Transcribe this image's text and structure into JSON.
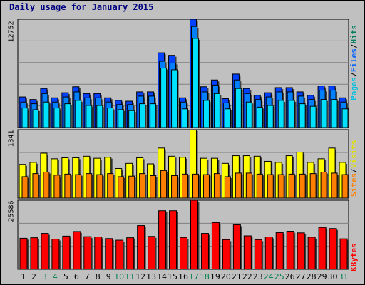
{
  "title": "Daily usage for January 2015",
  "panels": {
    "top": {
      "ymax_label": "12752",
      "legend": [
        "Pages",
        "/",
        "Files",
        "/",
        "Hits"
      ]
    },
    "middle": {
      "ymax_label": "1341",
      "legend": [
        "Sites",
        "/",
        "Visits"
      ]
    },
    "bottom": {
      "ymax_label": "25586",
      "legend": [
        "KBytes"
      ]
    }
  },
  "colors": {
    "background": "#c0c0c0",
    "plot_bg": "#c0c0c0",
    "hits": "#0040ff",
    "files": "#0080ff",
    "pages": "#00e0ff",
    "visits": "#ffff00",
    "sites": "#ff8000",
    "kbytes": "#ff0000",
    "weekday_label": "#000000",
    "weekend_label": "#00804b",
    "grid": "#808080"
  },
  "chart_data": {
    "type": "bar",
    "categories": [
      "1",
      "2",
      "3",
      "4",
      "5",
      "6",
      "7",
      "8",
      "9",
      "10",
      "11",
      "12",
      "13",
      "14",
      "15",
      "16",
      "17",
      "18",
      "19",
      "20",
      "21",
      "22",
      "23",
      "24",
      "25",
      "26",
      "27",
      "28",
      "29",
      "30",
      "31"
    ],
    "weekend_days": [
      3,
      4,
      10,
      11,
      17,
      18,
      24,
      25,
      31
    ],
    "panels": [
      {
        "ymax": 12752,
        "series": [
          {
            "name": "Hits",
            "values": [
              3600,
              3300,
              4600,
              3500,
              4100,
              4800,
              4000,
              4000,
              3500,
              3200,
              3100,
              4200,
              4200,
              8800,
              8500,
              3500,
              12752,
              4800,
              5600,
              3400,
              6300,
              4600,
              3800,
              4100,
              4700,
              4700,
              4200,
              3800,
              4900,
              4900,
              3500
            ]
          },
          {
            "name": "Files",
            "values": [
              3000,
              2800,
              4000,
              3000,
              3600,
              4200,
              3500,
              3500,
              3000,
              2700,
              2700,
              3700,
              3700,
              7800,
              7600,
              3000,
              11900,
              4200,
              5000,
              2900,
              5600,
              4000,
              3300,
              3600,
              4200,
              4200,
              3700,
              3300,
              4400,
              4400,
              3000
            ]
          },
          {
            "name": "Pages",
            "values": [
              2300,
              2100,
              3000,
              2300,
              2800,
              3200,
              2600,
              2600,
              2300,
              2100,
              2000,
              2800,
              2800,
              7000,
              6800,
              2200,
              10500,
              3200,
              4000,
              2200,
              4600,
              3000,
              2400,
              2600,
              3200,
              3200,
              2800,
              2500,
              3300,
              3300,
              2200
            ]
          }
        ]
      },
      {
        "ymax": 1341,
        "series": [
          {
            "name": "Visits",
            "values": [
              660,
              700,
              880,
              770,
              790,
              790,
              820,
              780,
              800,
              580,
              680,
              790,
              670,
              980,
              820,
              800,
              1341,
              780,
              780,
              680,
              830,
              830,
              820,
              720,
              700,
              830,
              900,
              700,
              770,
              980,
              700
            ]
          },
          {
            "name": "Sites",
            "values": [
              420,
              480,
              510,
              450,
              470,
              460,
              480,
              460,
              480,
              420,
              430,
              480,
              440,
              540,
              440,
              470,
              470,
              460,
              480,
              420,
              490,
              490,
              470,
              460,
              460,
              470,
              470,
              480,
              510,
              490,
              460
            ]
          }
        ]
      },
      {
        "ymax": 25586,
        "series": [
          {
            "name": "KBytes",
            "values": [
              11500,
              11700,
              13300,
              11200,
              12300,
              14000,
              12100,
              12000,
              11400,
              10800,
              11700,
              16200,
              12200,
              21700,
              21700,
              11800,
              25586,
              13300,
              17300,
              11000,
              16500,
              12400,
              11000,
              12000,
              13600,
              14100,
              13500,
              11900,
              15500,
              15100,
              11300
            ]
          }
        ]
      }
    ]
  }
}
